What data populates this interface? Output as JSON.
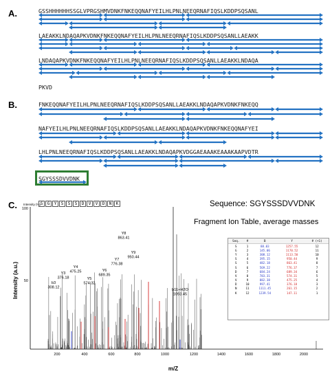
{
  "panels": {
    "a": {
      "label": "A.",
      "lines": [
        "GSSHHHHHHSSGLVPRGSHMVDNKFNKEQQNAFYEILHLPNLNEEQRNAFIQSLKDDPSQSANL",
        "LAEAKKLNDAQAPKVDNKFNKEQQNAFYEILHLPNLNEEQRNAFIQSLKDDPSQSANLLAEAKK",
        "LNDAQAPKVDNKFNKEQQNAFYEILHLPNLNEEQRNAFIQSLKDDPSQSANLLAEAKKLNDAQA",
        "PKVD"
      ]
    },
    "b": {
      "label": "B.",
      "lines": [
        "FNKEQQNAFYEILHLPNLNEEQRNAFIQSLKDDPSQSANLLAEAKKLNDAQAPKVDNKFNKEQQ",
        "NAFYEILHLPNLNEEQRNAFIQSLKDDPSQSANLLAEAKKLNDAQAPKVDNKFNKEQQNAFYEI",
        "LHLPNLNEEQRNAFIQSLKDDPSQSANLLAEAKKLNDAQAPKVDGGAEAAAKEAAAKAAPVDTR",
        "SGYSSSDVVDNK"
      ]
    },
    "c": {
      "label": "C.",
      "sequence_title": "Sequence: SGYSSSDVVDNK",
      "fragment_title": "Fragment Ion Table, average masses",
      "intensity_pct_label": "Intensity (%)",
      "sequence_letters": [
        "S",
        "G",
        "Y",
        "S",
        "S",
        "S",
        "D",
        "V",
        "V",
        "D",
        "N",
        "K"
      ],
      "y_axis_label": "Intensity (a.u.)",
      "x_axis_label": "m/Z",
      "y_ticks": [
        "100",
        "50"
      ],
      "x_ticks": [
        "200",
        "400",
        "600",
        "800",
        "1000",
        "1200",
        "1400",
        "1600",
        "1800",
        "2000"
      ],
      "peak_labels": [
        {
          "ion": "b3",
          "mz": "308.12"
        },
        {
          "ion": "Y3",
          "mz": "376.18"
        },
        {
          "ion": "Y4",
          "mz": "475.25"
        },
        {
          "ion": "Y5",
          "mz": "574.32"
        },
        {
          "ion": "Y6",
          "mz": "689.35"
        },
        {
          "ion": "Y7",
          "mz": "776.38"
        },
        {
          "ion": "Y8",
          "mz": "863.41"
        },
        {
          "ion": "Y9",
          "mz": "950.44"
        },
        {
          "ion": "b11+H2O",
          "mz": "1093.45"
        }
      ],
      "ion_table": {
        "headers": [
          "Seq.",
          "#",
          "B",
          "Y",
          "# (+1)"
        ],
        "rows": [
          [
            "S",
            "1",
            "88.03",
            "1257.55",
            "12"
          ],
          [
            "G",
            "2",
            "145.06",
            "1170.52",
            "11"
          ],
          [
            "Y",
            "3",
            "308.12",
            "1113.50",
            "10"
          ],
          [
            "S",
            "4",
            "395.15",
            "950.44",
            "9"
          ],
          [
            "S",
            "5",
            "482.18",
            "863.41",
            "8"
          ],
          [
            "S",
            "6",
            "569.22",
            "776.37",
            "7"
          ],
          [
            "D",
            "7",
            "684.24",
            "689.34",
            "6"
          ],
          [
            "V",
            "8",
            "783.31",
            "574.31",
            "5"
          ],
          [
            "V",
            "9",
            "882.38",
            "475.25",
            "4"
          ],
          [
            "D",
            "10",
            "997.41",
            "376.18",
            "3"
          ],
          [
            "N",
            "11",
            "1111.45",
            "261.15",
            "2"
          ],
          [
            "K",
            "12",
            "1239.54",
            "147.11",
            "1"
          ]
        ]
      }
    }
  }
}
